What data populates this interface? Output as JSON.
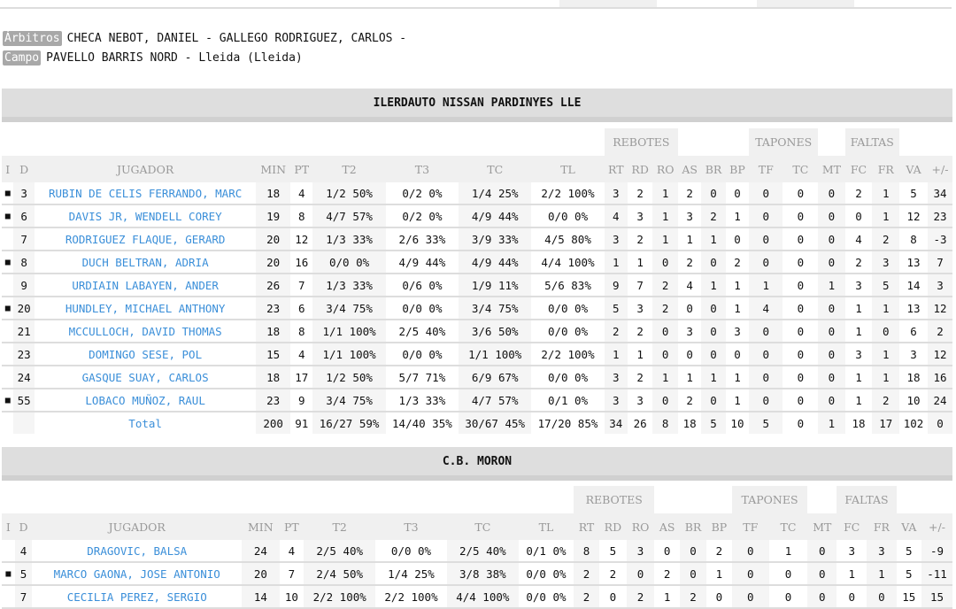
{
  "match_info": {
    "referees_label": "Árbitros",
    "referees": "CHECA NEBOT, DANIEL - GALLEGO RODRIGUEZ, CARLOS -",
    "venue_label": "Campo",
    "venue": "PAVELLO BARRIS NORD - Lleida (Lleida)"
  },
  "group_headers": {
    "rebotes": "REBOTES",
    "tapones": "TAPONES",
    "faltas": "FALTAS"
  },
  "columns": [
    "I",
    "D",
    "JUGADOR",
    "MIN",
    "PT",
    "T2",
    "T3",
    "TC",
    "TL",
    "RT",
    "RD",
    "RO",
    "AS",
    "BR",
    "BP",
    "TF",
    "TC",
    "MT",
    "FC",
    "FR",
    "VA",
    "+/-"
  ],
  "starter_marker": "■",
  "teams": [
    {
      "name": "ILERDAUTO NISSAN PARDINYES LLE",
      "players": [
        [
          true,
          "3",
          "RUBIN DE CELIS FERRANDO, MARC",
          "18",
          "4",
          "1/2 50%",
          "0/2 0%",
          "1/4 25%",
          "2/2 100%",
          "3",
          "2",
          "1",
          "2",
          "0",
          "0",
          "0",
          "0",
          "0",
          "2",
          "1",
          "5",
          "34"
        ],
        [
          true,
          "6",
          "DAVIS JR, WENDELL COREY",
          "19",
          "8",
          "4/7 57%",
          "0/2 0%",
          "4/9 44%",
          "0/0 0%",
          "4",
          "3",
          "1",
          "3",
          "2",
          "1",
          "0",
          "0",
          "0",
          "0",
          "1",
          "12",
          "23"
        ],
        [
          false,
          "7",
          "RODRIGUEZ FLAQUE, GERARD",
          "20",
          "12",
          "1/3 33%",
          "2/6 33%",
          "3/9 33%",
          "4/5 80%",
          "3",
          "2",
          "1",
          "1",
          "1",
          "0",
          "0",
          "0",
          "0",
          "4",
          "2",
          "8",
          "-3"
        ],
        [
          true,
          "8",
          "DUCH BELTRAN, ADRIA",
          "20",
          "16",
          "0/0 0%",
          "4/9 44%",
          "4/9 44%",
          "4/4 100%",
          "1",
          "1",
          "0",
          "2",
          "0",
          "2",
          "0",
          "0",
          "0",
          "2",
          "3",
          "13",
          "7"
        ],
        [
          false,
          "9",
          "URDIAIN LABAYEN, ANDER",
          "26",
          "7",
          "1/3 33%",
          "0/6 0%",
          "1/9 11%",
          "5/6 83%",
          "9",
          "7",
          "2",
          "4",
          "1",
          "1",
          "1",
          "0",
          "1",
          "3",
          "5",
          "14",
          "3"
        ],
        [
          true,
          "20",
          "HUNDLEY, MICHAEL ANTHONY",
          "23",
          "6",
          "3/4 75%",
          "0/0 0%",
          "3/4 75%",
          "0/0 0%",
          "5",
          "3",
          "2",
          "0",
          "0",
          "1",
          "4",
          "0",
          "0",
          "1",
          "1",
          "13",
          "12"
        ],
        [
          false,
          "21",
          "MCCULLOCH, DAVID THOMAS",
          "18",
          "8",
          "1/1 100%",
          "2/5 40%",
          "3/6 50%",
          "0/0 0%",
          "2",
          "2",
          "0",
          "3",
          "0",
          "3",
          "0",
          "0",
          "0",
          "1",
          "0",
          "6",
          "2"
        ],
        [
          false,
          "23",
          "DOMINGO SESE, POL",
          "15",
          "4",
          "1/1 100%",
          "0/0 0%",
          "1/1 100%",
          "2/2 100%",
          "1",
          "1",
          "0",
          "0",
          "0",
          "0",
          "0",
          "0",
          "0",
          "3",
          "1",
          "3",
          "12"
        ],
        [
          false,
          "24",
          "GASQUE SUAY, CARLOS",
          "18",
          "17",
          "1/2 50%",
          "5/7 71%",
          "6/9 67%",
          "0/0 0%",
          "3",
          "2",
          "1",
          "1",
          "1",
          "1",
          "0",
          "0",
          "0",
          "1",
          "1",
          "18",
          "16"
        ],
        [
          true,
          "55",
          "LOBACO MUÑOZ, RAUL",
          "23",
          "9",
          "3/4 75%",
          "1/3 33%",
          "4/7 57%",
          "0/1 0%",
          "3",
          "3",
          "0",
          "2",
          "0",
          "1",
          "0",
          "0",
          "0",
          "1",
          "2",
          "10",
          "24"
        ]
      ],
      "total": [
        "Total",
        "200",
        "91",
        "16/27 59%",
        "14/40 35%",
        "30/67 45%",
        "17/20 85%",
        "34",
        "26",
        "8",
        "18",
        "5",
        "10",
        "5",
        "0",
        "1",
        "18",
        "17",
        "102",
        "0"
      ]
    },
    {
      "name": "C.B. MORON",
      "players": [
        [
          false,
          "4",
          "DRAGOVIC, BALSA",
          "24",
          "4",
          "2/5 40%",
          "0/0 0%",
          "2/5 40%",
          "0/1 0%",
          "8",
          "5",
          "3",
          "0",
          "0",
          "2",
          "0",
          "1",
          "0",
          "3",
          "3",
          "5",
          "-9"
        ],
        [
          true,
          "5",
          "MARCO GAONA, JOSE ANTONIO",
          "20",
          "7",
          "2/4 50%",
          "1/4 25%",
          "3/8 38%",
          "0/0 0%",
          "2",
          "2",
          "0",
          "2",
          "0",
          "1",
          "0",
          "0",
          "0",
          "1",
          "1",
          "5",
          "-11"
        ],
        [
          false,
          "7",
          "CECILIA PEREZ, SERGIO",
          "14",
          "10",
          "2/2 100%",
          "2/2 100%",
          "4/4 100%",
          "0/0 0%",
          "2",
          "0",
          "2",
          "1",
          "2",
          "0",
          "0",
          "0",
          "0",
          "0",
          "0",
          "15",
          "15"
        ]
      ]
    }
  ]
}
